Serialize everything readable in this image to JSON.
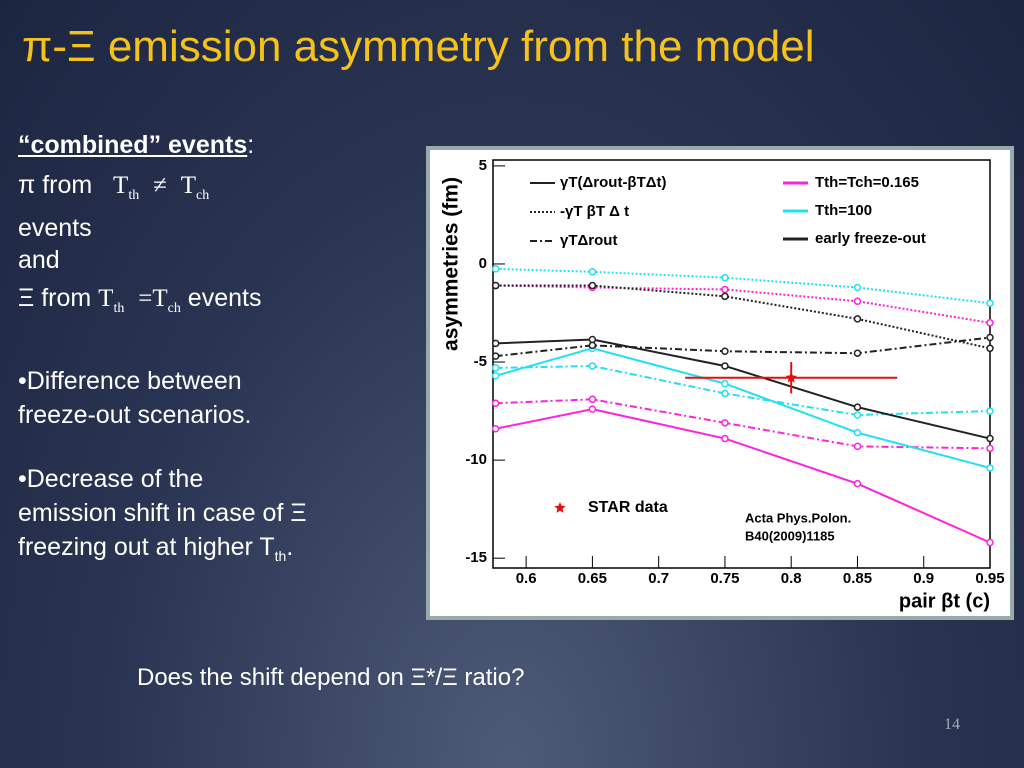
{
  "title": "π-Ξ emission asymmetry from the model",
  "left": {
    "heading": "“combined” events",
    "heading_colon": ":",
    "line1": [
      "π from",
      "T",
      "th",
      "≠",
      "T",
      "ch"
    ],
    "line1b": "events",
    "line2": "and",
    "line3": [
      "Ξ from",
      "T",
      "th",
      "=",
      "T",
      "ch",
      "events"
    ],
    "bullet1": "•Difference between freeze-out scenarios.",
    "bullet2": [
      "•Decrease of the emission shift in case of Ξ freezing out at higher T",
      "th",
      "."
    ]
  },
  "question": "Does the shift depend on Ξ*/Ξ ratio?",
  "page_number": "14",
  "chart_data": {
    "type": "line",
    "ylabel": "asymmetries (fm)",
    "xlabel": "pair βt (c)",
    "annotation": [
      "Acta Phys.Polon.",
      "B40(2009)1185"
    ],
    "x": [
      0.577,
      0.65,
      0.75,
      0.85,
      0.95
    ],
    "xlim": [
      0.575,
      0.95
    ],
    "xticks": [
      0.6,
      0.65,
      0.7,
      0.75,
      0.8,
      0.85,
      0.9,
      0.95
    ],
    "ylim": [
      -15.5,
      5.3
    ],
    "yticks": [
      -15,
      -10,
      -5,
      0,
      5
    ],
    "components": [
      {
        "name": "γT(Δrout-βTΔt)",
        "dash": "solid"
      },
      {
        "name": "-γT βT Δ t",
        "dash": "dotted"
      },
      {
        "name": "γTΔrout",
        "dash": "dashdot"
      }
    ],
    "scenarios": [
      {
        "name": "Tth=Tch=0.165",
        "color": "#ff22dd",
        "curves": [
          {
            "values": [
              -8.4,
              -7.4,
              -8.9,
              -11.2,
              -14.2
            ]
          },
          {
            "values": [
              -1.1,
              -1.2,
              -1.3,
              -1.9,
              -3.0
            ]
          },
          {
            "values": [
              -7.1,
              -6.9,
              -8.1,
              -9.3,
              -9.4
            ]
          }
        ]
      },
      {
        "name": "Tth=100",
        "color": "#22e0f0",
        "curves": [
          {
            "values": [
              -5.7,
              -4.3,
              -6.1,
              -8.6,
              -10.4
            ]
          },
          {
            "values": [
              -0.25,
              -0.4,
              -0.7,
              -1.2,
              -2.0
            ]
          },
          {
            "values": [
              -5.3,
              -5.2,
              -6.6,
              -7.7,
              -7.5
            ]
          }
        ]
      },
      {
        "name": "early freeze-out",
        "color": "#222222",
        "curves": [
          {
            "values": [
              -4.05,
              -3.85,
              -5.2,
              -7.3,
              -8.9
            ]
          },
          {
            "values": [
              -1.1,
              -1.1,
              -1.65,
              -2.8,
              -4.3
            ]
          },
          {
            "values": [
              -4.7,
              -4.15,
              -4.45,
              -4.55,
              -3.75
            ]
          }
        ]
      }
    ],
    "star": {
      "name": "STAR data",
      "color": "#e01010",
      "x": 0.8,
      "value": -5.8,
      "x_error": 0.08,
      "error": 0.8
    }
  }
}
